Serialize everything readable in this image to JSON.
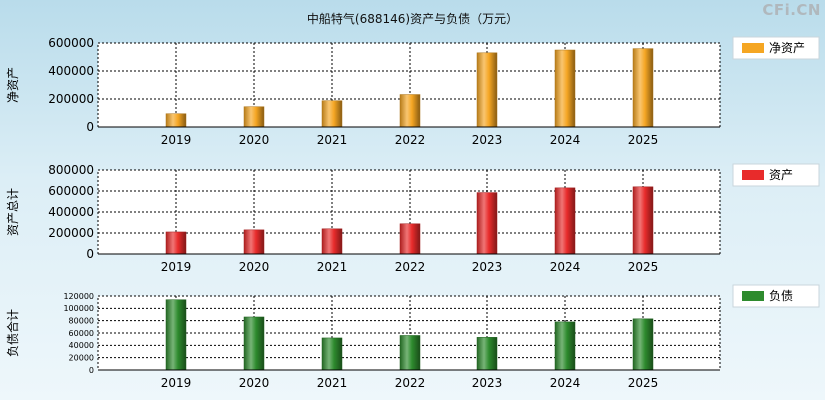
{
  "title": "中船特气(688146)资产与负债（万元）",
  "watermark": "CFi.CN",
  "colors": {
    "net_assets": "#f5a623",
    "assets": "#e82b2b",
    "liabilities": "#2e8b2e"
  },
  "chart_data": [
    {
      "type": "bar",
      "title": "中船特气(688146)资产与负债（万元）",
      "ylabel": "净资产",
      "legend": "净资产",
      "legend_position": "top-right",
      "color_key": "net_assets",
      "categories": [
        "2019",
        "2020",
        "2021",
        "2022",
        "2023",
        "2024",
        "2025"
      ],
      "values": [
        95000,
        145000,
        188000,
        232000,
        530000,
        550000,
        560000
      ],
      "ylim": [
        0,
        600000
      ],
      "yticks": [
        0,
        200000,
        400000,
        600000
      ],
      "grid": true
    },
    {
      "type": "bar",
      "ylabel": "资产总计",
      "legend": "资产",
      "legend_position": "top-right",
      "color_key": "assets",
      "categories": [
        "2019",
        "2020",
        "2021",
        "2022",
        "2023",
        "2024",
        "2025"
      ],
      "values": [
        210000,
        230000,
        240000,
        288000,
        585000,
        630000,
        640000
      ],
      "ylim": [
        0,
        800000
      ],
      "yticks": [
        0,
        200000,
        400000,
        600000,
        800000
      ],
      "grid": true
    },
    {
      "type": "bar",
      "ylabel": "负债合计",
      "legend": "负债",
      "legend_position": "top-right",
      "color_key": "liabilities",
      "categories": [
        "2019",
        "2020",
        "2021",
        "2022",
        "2023",
        "2024",
        "2025"
      ],
      "values": [
        114000,
        86000,
        52000,
        56000,
        53000,
        78000,
        83000
      ],
      "ylim": [
        0,
        120000
      ],
      "yticks": [
        0,
        20000,
        40000,
        60000,
        80000,
        100000,
        120000
      ],
      "grid": true
    }
  ]
}
